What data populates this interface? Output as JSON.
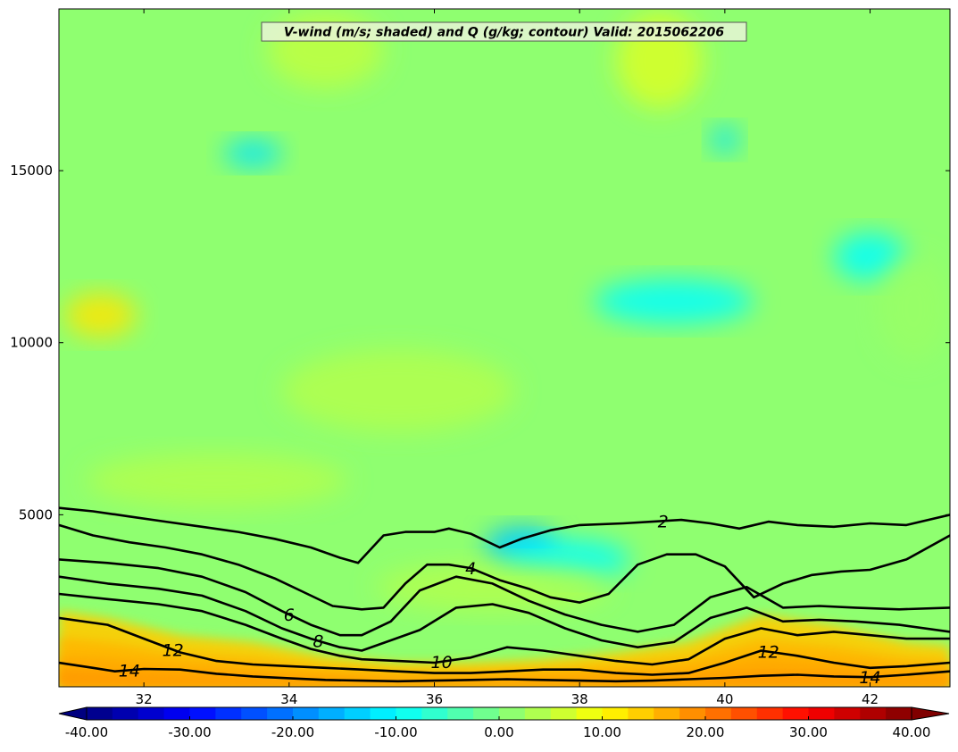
{
  "chart_data": {
    "type": "heatmap",
    "title": "V-wind (m/s; shaded) and Q (g/kg; contour) Valid: 2015062206",
    "xlabel": "",
    "ylabel": "",
    "xlim": [
      30.83,
      43.1
    ],
    "ylim": [
      0,
      19700
    ],
    "x_ticks": [
      32,
      34,
      36,
      38,
      40,
      42
    ],
    "y_ticks": [
      5000,
      10000,
      15000
    ],
    "colorbar": {
      "orientation": "horizontal",
      "extend": "both",
      "range": [
        -40,
        40
      ],
      "levels": [
        -40,
        -37.5,
        -35,
        -32.5,
        -30,
        -27.5,
        -25,
        -22.5,
        -20,
        -17.5,
        -15,
        -12.5,
        -10,
        -7.5,
        -5,
        -2.5,
        0,
        2.5,
        5,
        7.5,
        10,
        12.5,
        15,
        17.5,
        20,
        22.5,
        25,
        27.5,
        30,
        32.5,
        35,
        37.5,
        40
      ],
      "tick_labels": [
        "-40.00",
        "-30.00",
        "-20.00",
        "-10.00",
        "0.00",
        "10.00",
        "20.00",
        "30.00",
        "40.00"
      ],
      "tick_values": [
        -40,
        -30,
        -20,
        -10,
        0,
        10,
        20,
        30,
        40
      ],
      "colormap": "jet"
    },
    "shading": {
      "field": "V-wind",
      "units": "m/s",
      "background_value": 0,
      "patches": [
        {
          "x": 31.4,
          "y": 10800,
          "rx": 0.5,
          "ry": 650,
          "value": 12
        },
        {
          "x": 39.3,
          "y": 11200,
          "rx": 1.1,
          "ry": 650,
          "value": -10
        },
        {
          "x": 42.0,
          "y": 12500,
          "rx": 0.5,
          "ry": 700,
          "value": -10
        },
        {
          "x": 37.2,
          "y": 4100,
          "rx": 0.5,
          "ry": 550,
          "value": -15
        },
        {
          "x": 37.8,
          "y": 3700,
          "rx": 0.9,
          "ry": 600,
          "value": -10
        },
        {
          "x": 33.5,
          "y": 15500,
          "rx": 0.4,
          "ry": 400,
          "value": -12
        },
        {
          "x": 40.0,
          "y": 15900,
          "rx": 0.2,
          "ry": 400,
          "value": -12
        },
        {
          "x": 39.1,
          "y": 18200,
          "rx": 0.6,
          "ry": 1400,
          "value": 7
        },
        {
          "x": 34.5,
          "y": 18500,
          "rx": 0.8,
          "ry": 1100,
          "value": 5
        },
        {
          "x": 35.5,
          "y": 8600,
          "rx": 1.6,
          "ry": 1200,
          "value": 4
        },
        {
          "x": 42.6,
          "y": 11000,
          "rx": 0.5,
          "ry": 1500,
          "value": 2
        },
        {
          "x": 33.0,
          "y": 6000,
          "rx": 1.8,
          "ry": 800,
          "value": 4
        },
        {
          "x": 36.8,
          "y": 2900,
          "rx": 1.6,
          "ry": 700,
          "value": 4
        }
      ],
      "surface_band": {
        "field": "V-wind near surface",
        "values_by_x": [
          {
            "x": 30.83,
            "top": 2200,
            "peak": 22
          },
          {
            "x": 31.5,
            "top": 2000,
            "peak": 22
          },
          {
            "x": 32.5,
            "top": 1500,
            "peak": 20
          },
          {
            "x": 33.5,
            "top": 1300,
            "peak": 18
          },
          {
            "x": 34.5,
            "top": 900,
            "peak": 17
          },
          {
            "x": 35.5,
            "top": 700,
            "peak": 15
          },
          {
            "x": 36.5,
            "top": 700,
            "peak": 16
          },
          {
            "x": 37.5,
            "top": 800,
            "peak": 17
          },
          {
            "x": 38.5,
            "top": 1000,
            "peak": 18
          },
          {
            "x": 39.5,
            "top": 1300,
            "peak": 19
          },
          {
            "x": 40.5,
            "top": 2100,
            "peak": 22
          },
          {
            "x": 41.5,
            "top": 1800,
            "peak": 21
          },
          {
            "x": 42.5,
            "top": 1300,
            "peak": 19
          },
          {
            "x": 43.1,
            "top": 1200,
            "peak": 19
          }
        ]
      }
    },
    "contours": {
      "field": "Q",
      "units": "g/kg",
      "color": "#000000",
      "lines": [
        {
          "level": 2,
          "x": [
            30.83,
            31.3,
            31.8,
            32.3,
            32.8,
            33.3,
            33.8,
            34.3,
            34.7,
            34.95,
            35.3,
            35.6,
            36.0,
            36.2,
            36.5,
            36.9,
            37.2,
            37.6,
            38.0,
            38.6,
            39.0,
            39.4,
            39.8,
            40.2,
            40.6,
            41.0,
            41.5,
            42.0,
            42.5,
            43.1
          ],
          "y": [
            5200,
            5100,
            4950,
            4800,
            4650,
            4500,
            4300,
            4050,
            3750,
            3600,
            4400,
            4500,
            4500,
            4600,
            4450,
            4050,
            4300,
            4550,
            4700,
            4750,
            4800,
            4850,
            4750,
            4600,
            4800,
            4700,
            4650,
            4750,
            4700,
            5000
          ],
          "label_x": 39.15
        },
        {
          "level": 4,
          "x": [
            30.83,
            31.3,
            31.8,
            32.3,
            32.8,
            33.3,
            33.8,
            34.2,
            34.6,
            35.0,
            35.3,
            35.6,
            35.9,
            36.2,
            36.5,
            36.9,
            37.3,
            37.6,
            38.0,
            38.4,
            38.8,
            39.2,
            39.6,
            40.0,
            40.4,
            40.8,
            41.2,
            41.6,
            42.0,
            42.5,
            43.1
          ],
          "y": [
            4700,
            4400,
            4200,
            4050,
            3850,
            3550,
            3150,
            2750,
            2350,
            2250,
            2300,
            3000,
            3550,
            3550,
            3450,
            3100,
            2850,
            2600,
            2450,
            2700,
            3550,
            3850,
            3850,
            3500,
            2600,
            3000,
            3250,
            3350,
            3400,
            3700,
            4400
          ],
          "label_x": 36.5
        },
        {
          "level": 6,
          "x": [
            30.83,
            31.5,
            32.2,
            32.8,
            33.4,
            33.9,
            34.3,
            34.7,
            35.0,
            35.4,
            35.8,
            36.3,
            36.8,
            37.3,
            37.8,
            38.3,
            38.8,
            39.3,
            39.8,
            40.3,
            40.8,
            41.3,
            41.8,
            42.4,
            43.1
          ],
          "y": [
            3700,
            3600,
            3450,
            3200,
            2750,
            2200,
            1800,
            1500,
            1500,
            1900,
            2800,
            3200,
            3000,
            2500,
            2100,
            1800,
            1600,
            1800,
            2600,
            2900,
            2300,
            2350,
            2300,
            2250,
            2300
          ],
          "label_x": 34.0
        },
        {
          "level": 8,
          "x": [
            30.83,
            31.5,
            32.2,
            32.8,
            33.4,
            33.9,
            34.3,
            34.7,
            35.0,
            35.4,
            35.8,
            36.3,
            36.8,
            37.3,
            37.8,
            38.3,
            38.8,
            39.3,
            39.8,
            40.3,
            40.8,
            41.3,
            41.8,
            42.4,
            43.1
          ],
          "y": [
            3200,
            3000,
            2850,
            2650,
            2200,
            1700,
            1400,
            1150,
            1050,
            1350,
            1650,
            2300,
            2400,
            2150,
            1700,
            1350,
            1150,
            1300,
            2000,
            2300,
            1900,
            1950,
            1900,
            1800,
            1600
          ],
          "label_x": 34.4
        },
        {
          "level": 10,
          "x": [
            30.83,
            31.5,
            32.2,
            32.8,
            33.4,
            33.9,
            34.3,
            34.7,
            35.0,
            35.5,
            36.0,
            36.5,
            37.0,
            37.5,
            38.0,
            38.5,
            39.0,
            39.5,
            40.0,
            40.5,
            41.0,
            41.5,
            42.0,
            42.5,
            43.1
          ],
          "y": [
            2700,
            2550,
            2400,
            2200,
            1800,
            1400,
            1100,
            900,
            800,
            750,
            700,
            850,
            1150,
            1050,
            900,
            750,
            650,
            800,
            1400,
            1700,
            1500,
            1600,
            1500,
            1400,
            1400
          ],
          "label_x": 36.1
        },
        {
          "level": 12,
          "x": [
            30.83,
            31.5,
            32.0,
            32.5,
            33.0,
            33.5,
            34.0,
            34.5,
            35.0,
            35.5,
            36.0,
            36.5,
            37.0,
            37.5,
            38.0,
            38.5,
            39.0,
            39.5,
            40.0,
            40.5,
            41.0,
            41.5,
            42.0,
            42.5,
            43.1
          ],
          "y": [
            2000,
            1800,
            1400,
            1000,
            750,
            650,
            600,
            550,
            500,
            450,
            400,
            400,
            450,
            500,
            500,
            400,
            350,
            400,
            700,
            1050,
            900,
            700,
            550,
            600,
            700
          ],
          "label_x": 32.4
        },
        {
          "level": 14,
          "x": [
            30.83,
            31.3,
            31.6,
            32.0,
            32.5,
            33.0,
            33.5,
            34.0,
            34.5,
            35.0,
            35.5,
            36.0,
            36.5,
            37.0,
            37.5,
            38.0,
            38.5,
            39.0,
            39.5,
            40.0,
            40.5,
            41.0,
            41.5,
            42.0,
            42.5,
            43.1
          ],
          "y": [
            700,
            550,
            450,
            520,
            500,
            380,
            300,
            250,
            200,
            180,
            160,
            180,
            200,
            220,
            200,
            180,
            160,
            180,
            220,
            260,
            320,
            350,
            300,
            280,
            350,
            450
          ],
          "label_x": 31.8
        }
      ],
      "extra_labels": [
        {
          "level": 12,
          "x": 40.6
        },
        {
          "level": 14,
          "x": 42.0
        }
      ]
    }
  }
}
